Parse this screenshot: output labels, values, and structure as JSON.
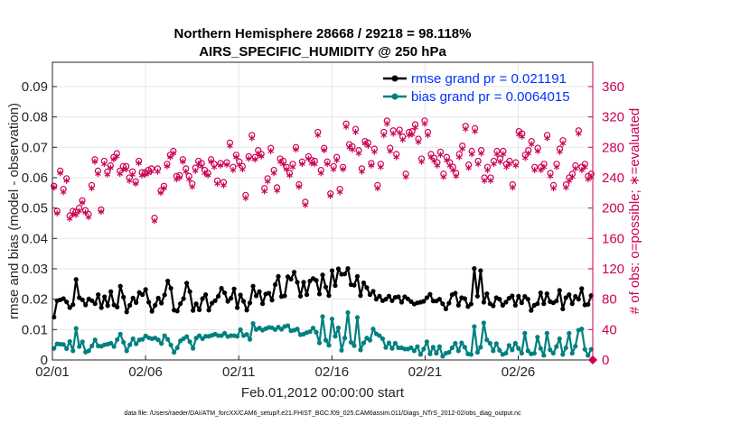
{
  "chart_data": {
    "type": "line",
    "title": [
      "Northern Hemisphere 28668 / 29218 = 98.118%",
      "AIRS_SPECIFIC_HUMIDITY @ 250 hPa"
    ],
    "xlabel": "Feb.01,2012 00:00:00 start",
    "ylabel_left": "rmse and bias (model - observation)",
    "ylabel_right": "# of obs: o=possible; ∗=evaluated",
    "footer": "data file: /Users/raeder/DAI/ATM_forcXX/CAM6_setup/f.e21.FHIST_BGC.f09_025.CAM6assim.011/Diags_NTrS_2012-02/obs_diag_output.nc",
    "x_ticks": [
      {
        "day": 0,
        "label": "02/01"
      },
      {
        "day": 5,
        "label": "02/06"
      },
      {
        "day": 10,
        "label": "02/11"
      },
      {
        "day": 15,
        "label": "02/16"
      },
      {
        "day": 20,
        "label": "02/21"
      },
      {
        "day": 25,
        "label": "02/26"
      }
    ],
    "xlim": [
      0,
      29
    ],
    "ylim_left": [
      0,
      0.098
    ],
    "yticks_left": [
      "0",
      "0.01",
      "0.02",
      "0.03",
      "0.04",
      "0.05",
      "0.06",
      "0.07",
      "0.08",
      "0.09"
    ],
    "ylim_right": [
      0,
      392
    ],
    "yticks_right": [
      "0",
      "40",
      "80",
      "120",
      "160",
      "200",
      "240",
      "280",
      "320",
      "360"
    ],
    "legend": [
      {
        "label": "rmse grand pr = 0.021191",
        "color": "#000000"
      },
      {
        "label": "bias grand pr = 0.0064015",
        "color": "#008080"
      }
    ],
    "colors": {
      "rmse": "#000000",
      "bias": "#008080",
      "obs": "#cc0055",
      "legend_text": "#0033ff"
    },
    "rmse": [
      0.0141,
      0.0195,
      0.0198,
      0.0202,
      0.0191,
      0.0172,
      0.0182,
      0.0265,
      0.0205,
      0.0198,
      0.0181,
      0.0201,
      0.0195,
      0.0185,
      0.0215,
      0.0172,
      0.0208,
      0.0179,
      0.0225,
      0.0181,
      0.0174,
      0.0243,
      0.0207,
      0.0158,
      0.018,
      0.0204,
      0.0189,
      0.0222,
      0.0215,
      0.0232,
      0.019,
      0.016,
      0.018,
      0.0204,
      0.0187,
      0.0214,
      0.026,
      0.0236,
      0.0164,
      0.0161,
      0.0185,
      0.0202,
      0.0253,
      0.0225,
      0.0163,
      0.0185,
      0.0165,
      0.0202,
      0.0215,
      0.0164,
      0.0187,
      0.0195,
      0.021,
      0.0236,
      0.0221,
      0.0193,
      0.0203,
      0.0234,
      0.0172,
      0.0214,
      0.0193,
      0.0164,
      0.0188,
      0.0243,
      0.0211,
      0.0225,
      0.0185,
      0.0217,
      0.022,
      0.0197,
      0.0248,
      0.0275,
      0.0209,
      0.0211,
      0.0274,
      0.0266,
      0.0289,
      0.0256,
      0.021,
      0.0256,
      0.0215,
      0.026,
      0.0268,
      0.0262,
      0.0217,
      0.028,
      0.024,
      0.0212,
      0.0294,
      0.0245,
      0.03,
      0.0282,
      0.0283,
      0.0301,
      0.0248,
      0.0246,
      0.0275,
      0.0212,
      0.0254,
      0.0238,
      0.0215,
      0.0226,
      0.02,
      0.021,
      0.0195,
      0.02,
      0.021,
      0.0195,
      0.0206,
      0.0208,
      0.019,
      0.0208,
      0.0201,
      0.0192,
      0.0184,
      0.0188,
      0.019,
      0.0193,
      0.0205,
      0.0216,
      0.0194,
      0.0194,
      0.02,
      0.0185,
      0.0168,
      0.0187,
      0.0215,
      0.022,
      0.018,
      0.0205,
      0.0202,
      0.0176,
      0.0184,
      0.0301,
      0.021,
      0.0294,
      0.019,
      0.0218,
      0.0185,
      0.0178,
      0.0205,
      0.02,
      0.018,
      0.019,
      0.0203,
      0.0211,
      0.018,
      0.021,
      0.0188,
      0.0209,
      0.02,
      0.0163,
      0.018,
      0.0185,
      0.0221,
      0.0185,
      0.0218,
      0.0192,
      0.0188,
      0.0194,
      0.0229,
      0.0168,
      0.0205,
      0.0215,
      0.0185,
      0.0209,
      0.02,
      0.0235,
      0.0181,
      0.0183,
      0.0212
    ],
    "bias": [
      0.0038,
      0.0053,
      0.0052,
      0.0051,
      0.0037,
      0.0061,
      0.003,
      0.0104,
      0.0044,
      0.006,
      0.0026,
      0.003,
      0.0046,
      0.0066,
      0.0046,
      0.0045,
      0.005,
      0.0052,
      0.0055,
      0.0044,
      0.0067,
      0.0085,
      0.0058,
      0.003,
      0.005,
      0.007,
      0.0053,
      0.0066,
      0.0068,
      0.0079,
      0.0073,
      0.007,
      0.0072,
      0.0066,
      0.0054,
      0.008,
      0.0068,
      0.0049,
      0.0025,
      0.004,
      0.0063,
      0.007,
      0.0077,
      0.006,
      0.0038,
      0.0072,
      0.008,
      0.007,
      0.0078,
      0.0078,
      0.0081,
      0.0085,
      0.008,
      0.008,
      0.0088,
      0.0077,
      0.008,
      0.008,
      0.0078,
      0.01,
      0.008,
      0.0084,
      0.0068,
      0.012,
      0.01,
      0.0105,
      0.0098,
      0.0103,
      0.0107,
      0.0106,
      0.01,
      0.0108,
      0.0101,
      0.011,
      0.0113,
      0.0096,
      0.0098,
      0.0102,
      0.0083,
      0.0085,
      0.009,
      0.0093,
      0.0105,
      0.0091,
      0.0056,
      0.0143,
      0.0065,
      0.0048,
      0.0135,
      0.0078,
      0.0106,
      0.0032,
      0.0072,
      0.0156,
      0.0058,
      0.0047,
      0.014,
      0.0033,
      0.0056,
      0.0072,
      0.0065,
      0.0102,
      0.0086,
      0.008,
      0.007,
      0.0041,
      0.0056,
      0.0038,
      0.0055,
      0.004,
      0.004,
      0.0036,
      0.0036,
      0.004,
      0.003,
      0.0044,
      0.0018,
      0.0036,
      0.006,
      0.002,
      0.0042,
      0.0022,
      0.0044,
      0.0012,
      0.0022,
      0.0025,
      0.004,
      0.0055,
      0.003,
      0.0056,
      0.0042,
      0.002,
      0.0018,
      0.011,
      0.0025,
      0.0042,
      0.0122,
      0.0066,
      0.0055,
      0.003,
      0.0054,
      0.0032,
      0.0018,
      0.0022,
      0.0048,
      0.0033,
      0.0055,
      0.0038,
      0.0022,
      0.0088,
      0.003,
      0.002,
      0.0022,
      0.0075,
      0.0038,
      0.0015,
      0.0088,
      0.0033,
      0.0022,
      0.0044,
      0.007,
      0.0018,
      0.004,
      0.0088,
      0.0022,
      0.0045,
      0.0098,
      0.0102,
      0.0035,
      0.0015,
      0.0035
    ],
    "obs_possible": [
      229,
      196,
      249,
      225,
      239,
      190,
      196,
      195,
      200,
      210,
      197,
      192,
      230,
      264,
      249,
      198,
      262,
      248,
      256,
      267,
      272,
      249,
      255,
      255,
      240,
      248,
      235,
      262,
      247,
      247,
      250,
      252,
      187,
      252,
      223,
      229,
      258,
      270,
      275,
      242,
      243,
      264,
      252,
      242,
      232,
      253,
      262,
      259,
      250,
      246,
      264,
      258,
      236,
      259,
      234,
      260,
      286,
      254,
      270,
      261,
      255,
      217,
      268,
      296,
      267,
      276,
      271,
      226,
      239,
      279,
      250,
      227,
      265,
      262,
      254,
      246,
      258,
      280,
      231,
      261,
      208,
      268,
      263,
      262,
      300,
      250,
      279,
      261,
      219,
      255,
      267,
      225,
      254,
      311,
      284,
      281,
      304,
      276,
      252,
      288,
      286,
      259,
      278,
      230,
      258,
      300,
      315,
      279,
      302,
      271,
      303,
      294,
      245,
      300,
      301,
      310,
      291,
      265,
      315,
      300,
      271,
      266,
      260,
      274,
      245,
      267,
      260,
      254,
      246,
      271,
      282,
      308,
      257,
      275,
      305,
      262,
      276,
      240,
      254,
      240,
      262,
      275,
      265,
      275,
      258,
      262,
      231,
      260,
      301,
      298,
      270,
      276,
      288,
      254,
      279,
      254,
      258,
      296,
      246,
      230,
      258,
      278,
      289,
      231,
      240,
      245,
      256,
      302,
      254,
      258,
      242,
      245
    ],
    "obs_evaluated": [
      227,
      193,
      246,
      221,
      236,
      186,
      192,
      191,
      196,
      207,
      194,
      188,
      226,
      261,
      245,
      195,
      258,
      244,
      253,
      264,
      268,
      245,
      251,
      251,
      236,
      244,
      232,
      259,
      243,
      244,
      246,
      248,
      183,
      248,
      220,
      226,
      255,
      267,
      272,
      238,
      240,
      261,
      248,
      238,
      228,
      249,
      258,
      255,
      246,
      243,
      261,
      254,
      232,
      256,
      230,
      257,
      282,
      250,
      267,
      257,
      251,
      213,
      265,
      292,
      264,
      272,
      268,
      222,
      235,
      275,
      246,
      223,
      261,
      258,
      251,
      243,
      254,
      277,
      228,
      258,
      204,
      265,
      259,
      258,
      296,
      246,
      276,
      258,
      216,
      251,
      263,
      221,
      251,
      307,
      280,
      277,
      300,
      272,
      248,
      285,
      282,
      256,
      274,
      226,
      254,
      296,
      311,
      275,
      298,
      267,
      299,
      290,
      241,
      296,
      297,
      306,
      287,
      261,
      311,
      296,
      267,
      262,
      256,
      270,
      241,
      263,
      256,
      250,
      242,
      267,
      278,
      304,
      253,
      271,
      301,
      258,
      272,
      236,
      250,
      236,
      258,
      271,
      261,
      271,
      254,
      258,
      227,
      256,
      297,
      294,
      266,
      272,
      284,
      250,
      275,
      250,
      254,
      292,
      242,
      226,
      254,
      274,
      285,
      227,
      236,
      241,
      252,
      298,
      250,
      254,
      238,
      241
    ]
  }
}
